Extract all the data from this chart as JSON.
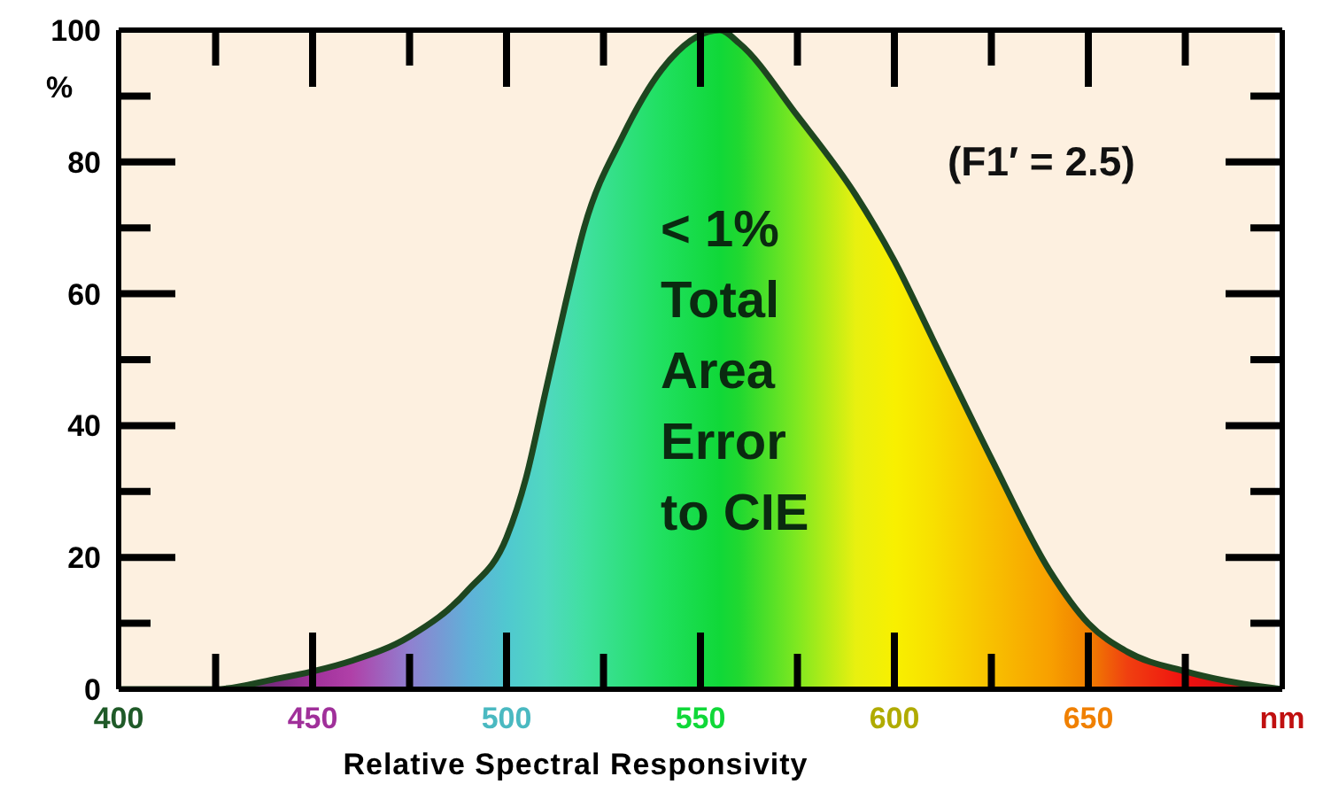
{
  "chart_data": {
    "type": "area",
    "xlabel": "Relative Spectral Responsivity",
    "ylabel": "%",
    "x": [
      400,
      425,
      440,
      450,
      460,
      475,
      490,
      500,
      505,
      510,
      515,
      520,
      530,
      540,
      555,
      560,
      575,
      590,
      600,
      610,
      625,
      640,
      650,
      660,
      675,
      690,
      700
    ],
    "series": [
      {
        "color": "#1e4620",
        "colors": [
          "#1f5a28",
          "#2a6a30",
          "#7a2a80",
          "#a0309a",
          "#b040a8",
          "#9080d0",
          "#60b0d8",
          "#50c8d0",
          "#50d0c8",
          "#50d8c0",
          "#48dcb0",
          "#40e0a0",
          "#30e080",
          "#20e060",
          "#10d838",
          "#20d830",
          "#80e820",
          "#e8f010",
          "#f8f000",
          "#f8e000",
          "#f8c000",
          "#f8a000",
          "#f08000",
          "#f04010",
          "#f01010",
          "#d01010",
          "#c01010"
        ],
        "values": [
          0,
          0,
          1.5,
          2.7,
          4.3,
          8,
          15,
          23,
          32,
          45,
          58,
          70,
          84,
          94,
          100,
          98,
          87,
          75,
          65,
          53,
          35,
          18,
          10,
          5.7,
          2.7,
          0.8,
          0
        ]
      }
    ],
    "xlim": [
      400,
      700
    ],
    "xticks": [
      400,
      450,
      500,
      550,
      600,
      650,
      {
        "value": 700,
        "label": "nm"
      }
    ],
    "ylim": [
      0,
      100
    ],
    "yticks": [
      0,
      20,
      40,
      60,
      80,
      100
    ],
    "annotations": [
      "(F1′ = 2.5)",
      "< 1%\nTotal\nArea\nError\nto CIE"
    ],
    "grid": false,
    "legend": false,
    "marker": "none",
    "line_style": "solid"
  }
}
